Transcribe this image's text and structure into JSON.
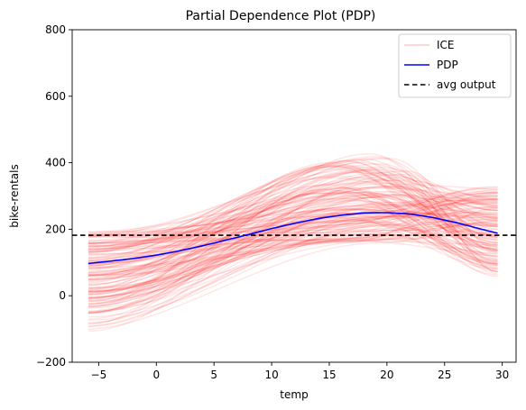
{
  "chart_data": {
    "type": "line",
    "title": "Partial Dependence Plot (PDP)",
    "xlabel": "temp",
    "ylabel": "bike-rentals",
    "xlim": [
      -7.3,
      31.2
    ],
    "ylim": [
      -200,
      800
    ],
    "xticks": [
      -5,
      0,
      5,
      10,
      15,
      20,
      25,
      30
    ],
    "yticks": [
      -200,
      0,
      200,
      400,
      600,
      800
    ],
    "grid": false,
    "legend_position": "top-right",
    "legend": [
      "ICE",
      "PDP",
      "avg output"
    ],
    "series": [
      {
        "name": "ICE",
        "kind": "ice-bundle",
        "color": "#ff0000",
        "opacity": 0.1,
        "count": 150,
        "x_range": [
          -5.9,
          29.6
        ],
        "start_range": [
          -160,
          205
        ],
        "peak_range": [
          150,
          450
        ],
        "end_range": [
          40,
          350
        ]
      },
      {
        "name": "PDP",
        "color": "#0000ff",
        "x": [
          -5.9,
          -4,
          -2,
          0,
          2,
          4,
          6,
          8,
          10,
          12,
          14,
          16,
          18,
          20,
          22,
          24,
          26,
          28,
          29.6
        ],
        "values": [
          97,
          104,
          112,
          122,
          135,
          150,
          167,
          184,
          202,
          218,
          232,
          242,
          249,
          250,
          246,
          235,
          220,
          202,
          188
        ]
      },
      {
        "name": "avg output",
        "color": "#000000",
        "style": "dashed",
        "y": 182
      }
    ]
  }
}
